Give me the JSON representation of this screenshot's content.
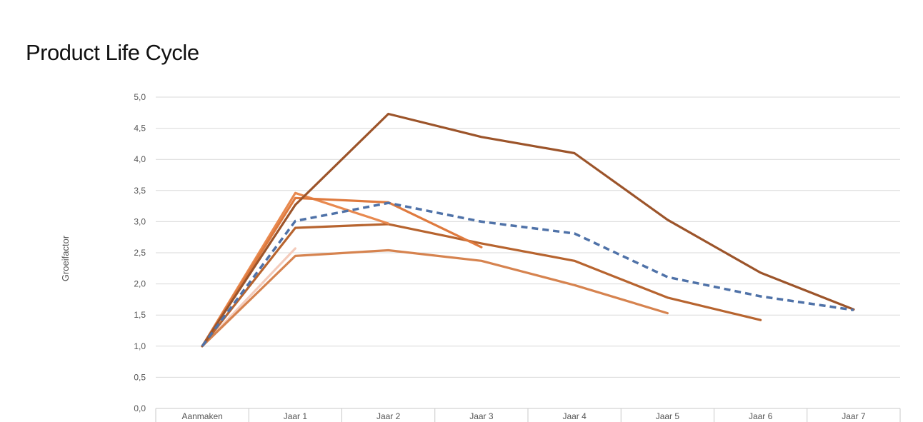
{
  "chart_data": {
    "type": "line",
    "title": "Product Life Cycle",
    "xlabel": "",
    "ylabel": "Groeifactor",
    "ylim": [
      0,
      5
    ],
    "ytick_step": 0.5,
    "grid": true,
    "categories": [
      "Aanmaken",
      "Jaar 1",
      "Jaar 2",
      "Jaar 3",
      "Jaar 4",
      "Jaar 5",
      "Jaar 6",
      "Jaar 7"
    ],
    "yticks": [
      "0,0",
      "0,5",
      "1,0",
      "1,5",
      "2,0",
      "2,5",
      "3,0",
      "3,5",
      "4,0",
      "4,5",
      "5,0"
    ],
    "series": [
      {
        "color": "#f4cbbb",
        "dashed": false,
        "values": [
          1.0,
          2.57,
          null,
          null,
          null,
          null,
          null,
          null
        ]
      },
      {
        "color": "#d6834f",
        "dashed": false,
        "values": [
          1.0,
          2.45,
          2.54,
          2.37,
          1.98,
          1.53,
          null,
          null
        ]
      },
      {
        "color": "#b7642f",
        "dashed": false,
        "values": [
          1.0,
          2.9,
          2.96,
          2.65,
          2.37,
          1.78,
          1.42,
          null
        ]
      },
      {
        "color": "#e8894f",
        "dashed": false,
        "values": [
          1.0,
          3.46,
          2.97,
          null,
          null,
          null,
          null,
          null
        ]
      },
      {
        "color": "#df7a3e",
        "dashed": false,
        "values": [
          1.0,
          3.38,
          3.31,
          2.59,
          null,
          null,
          null,
          null
        ]
      },
      {
        "color": "#9c542a",
        "dashed": false,
        "values": [
          1.0,
          3.27,
          4.73,
          4.36,
          4.1,
          3.03,
          2.18,
          1.59
        ]
      },
      {
        "color": "#4f72a8",
        "dashed": true,
        "values": [
          1.0,
          3.01,
          3.3,
          3.0,
          2.81,
          2.11,
          1.8,
          1.58
        ]
      }
    ]
  }
}
